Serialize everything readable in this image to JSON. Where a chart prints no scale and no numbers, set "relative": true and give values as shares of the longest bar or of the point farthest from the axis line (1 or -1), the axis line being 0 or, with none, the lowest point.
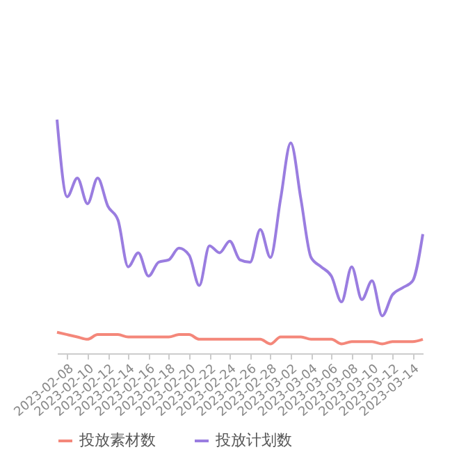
{
  "chart_data": {
    "type": "line",
    "relative": true,
    "legend": "bottom",
    "marker": "none",
    "line_style": "solid",
    "x": [
      "2023-02-07",
      "2023-02-08",
      "2023-02-09",
      "2023-02-10",
      "2023-02-11",
      "2023-02-12",
      "2023-02-13",
      "2023-02-14",
      "2023-02-15",
      "2023-02-16",
      "2023-02-17",
      "2023-02-18",
      "2023-02-19",
      "2023-02-20",
      "2023-02-21",
      "2023-02-22",
      "2023-02-23",
      "2023-02-24",
      "2023-02-25",
      "2023-02-26",
      "2023-02-27",
      "2023-02-28",
      "2023-03-01",
      "2023-03-02",
      "2023-03-03",
      "2023-03-04",
      "2023-03-05",
      "2023-03-06",
      "2023-03-07",
      "2023-03-08",
      "2023-03-09",
      "2023-03-10",
      "2023-03-11",
      "2023-03-12",
      "2023-03-13",
      "2023-03-14",
      "2023-03-15"
    ],
    "xlim": [
      "2023-02-07",
      "2023-03-15"
    ],
    "xticks": [
      "2023-02-08",
      "2023-02-10",
      "2023-02-12",
      "2023-02-14",
      "2023-02-16",
      "2023-02-18",
      "2023-02-20",
      "2023-02-22",
      "2023-02-24",
      "2023-02-26",
      "2023-02-28",
      "2023-03-02",
      "2023-03-04",
      "2023-03-06",
      "2023-03-08",
      "2023-03-10",
      "2023-03-12",
      "2023-03-14"
    ],
    "series": [
      {
        "name": "投放素材数",
        "color": "#f4877a",
        "values": [
          0.09,
          0.08,
          0.07,
          0.06,
          0.08,
          0.08,
          0.08,
          0.07,
          0.07,
          0.07,
          0.07,
          0.07,
          0.08,
          0.08,
          0.06,
          0.06,
          0.06,
          0.06,
          0.06,
          0.06,
          0.06,
          0.04,
          0.07,
          0.07,
          0.07,
          0.06,
          0.06,
          0.06,
          0.04,
          0.05,
          0.05,
          0.05,
          0.04,
          0.05,
          0.05,
          0.05,
          0.06
        ]
      },
      {
        "name": "投放计划数",
        "color": "#9a7de0",
        "values": [
          1,
          0.67,
          0.75,
          0.64,
          0.75,
          0.63,
          0.57,
          0.37,
          0.43,
          0.33,
          0.39,
          0.4,
          0.45,
          0.42,
          0.29,
          0.46,
          0.43,
          0.48,
          0.4,
          0.39,
          0.53,
          0.41,
          0.66,
          0.9,
          0.66,
          0.41,
          0.37,
          0.33,
          0.22,
          0.37,
          0.23,
          0.31,
          0.16,
          0.25,
          0.28,
          0.31,
          0.51
        ]
      }
    ]
  }
}
